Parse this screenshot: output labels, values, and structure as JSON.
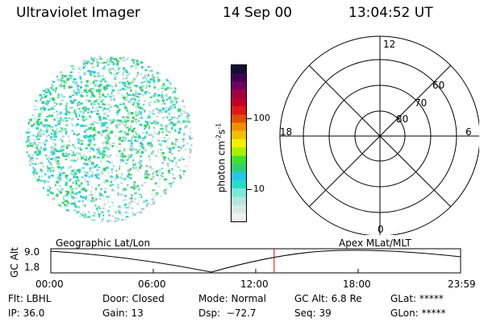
{
  "header": {
    "title": "Ultraviolet Imager",
    "date": "14 Sep 00",
    "time": "13:04:52 UT"
  },
  "colorbar": {
    "label": "photon cm",
    "label_exp1": "-2",
    "label_s": "s",
    "label_exp2": "-1",
    "ticks": [
      "100",
      "10"
    ],
    "tick_values": [
      100,
      10
    ],
    "range": [
      2,
      2000
    ],
    "colors": [
      "#f0f0f0",
      "#d8e8e8",
      "#b4e6e0",
      "#7ce8d8",
      "#28dcc8",
      "#24c8e8",
      "#30d070",
      "#40e030",
      "#a8f000",
      "#f0f000",
      "#f0c000",
      "#f09000",
      "#e05000",
      "#e01818",
      "#c00028",
      "#a00040",
      "#700060",
      "#400050",
      "#101030"
    ]
  },
  "polar": {
    "labels": {
      "top": "12",
      "bottom": "0",
      "left": "18",
      "right": "6"
    },
    "ring_labels": [
      "60",
      "70",
      "80"
    ]
  },
  "timeline": {
    "left_title": "Geographic Lat/Lon",
    "right_title": "Apex  MLat/MLT",
    "axis_label": "GC Alt",
    "y_max": "9.0",
    "y_min": "1.8",
    "ticks": [
      "00:00",
      "06:00",
      "12:00",
      "18:00",
      "23:59"
    ],
    "marker_time": "13:05",
    "marker_fraction": 0.545,
    "marker_color": "#e00000"
  },
  "info": {
    "flt": "Flt: LBHL",
    "ip": "IP: 36.0",
    "door": "Door: Closed",
    "gain": "Gain: 13",
    "mode": "Mode: Normal",
    "dsp": "Dsp:  −72.7",
    "gcalt": "GC Alt: 6.8 Re",
    "seq": "Seq: 39",
    "glat": "GLat: *****",
    "glon": "GLon: *****"
  }
}
